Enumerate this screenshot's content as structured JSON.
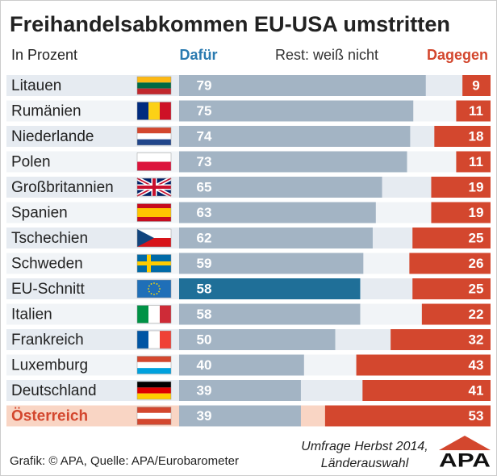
{
  "chart_data": {
    "type": "diverging_bar",
    "title": "Freihandelsabkommen EU-USA umstritten",
    "subtitle": "In Prozent",
    "legend_note": "Rest: weiß nicht",
    "categories": [
      "Litauen",
      "Rumänien",
      "Niederlande",
      "Polen",
      "Großbritannien",
      "Spanien",
      "Tschechien",
      "Schweden",
      "EU-Schnitt",
      "Italien",
      "Frankreich",
      "Luxemburg",
      "Deutschland",
      "Österreich"
    ],
    "category_colors": [
      "#222",
      "#222",
      "#222",
      "#222",
      "#222",
      "#222",
      "#222",
      "#222",
      "#222",
      "#222",
      "#222",
      "#222",
      "#222",
      "#d3472e"
    ],
    "series": [
      {
        "name": "Dafür",
        "color": "#2a7ab0",
        "colors": [
          "#a3b4c4",
          "#a3b4c4",
          "#a3b4c4",
          "#a3b4c4",
          "#a3b4c4",
          "#a3b4c4",
          "#a3b4c4",
          "#a3b4c4",
          "#1f6f98",
          "#a3b4c4",
          "#a3b4c4",
          "#a3b4c4",
          "#a3b4c4",
          "#a3b4c4"
        ],
        "values": [
          79,
          75,
          74,
          73,
          65,
          63,
          62,
          59,
          58,
          58,
          50,
          40,
          39,
          39
        ]
      },
      {
        "name": "Dagegen",
        "color": "#d3472e",
        "values": [
          9,
          11,
          18,
          11,
          19,
          19,
          25,
          26,
          25,
          22,
          32,
          43,
          41,
          53
        ]
      }
    ],
    "source": "Grafik: © APA, Quelle: APA/Eurobarometer",
    "note": [
      "Umfrage Herbst 2014,",
      "Länderauswahl"
    ],
    "logo": "APA"
  }
}
